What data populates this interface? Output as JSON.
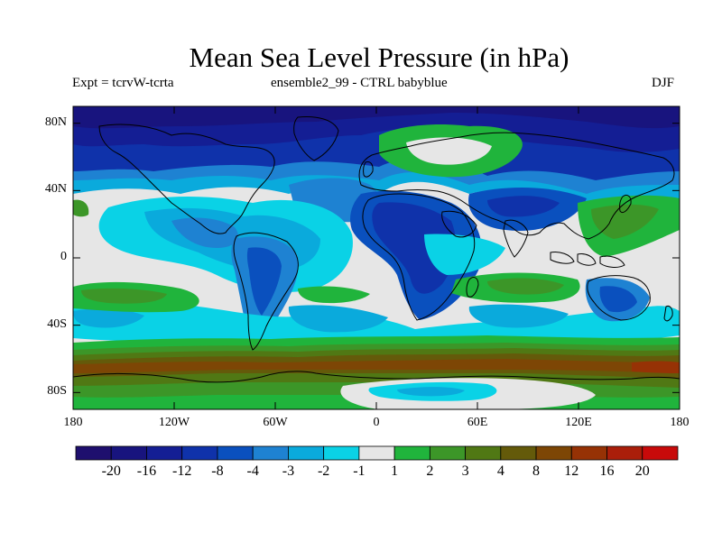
{
  "title": "Mean Sea Level Pressure (in hPa)",
  "subtitle_left": "Expt = tcrvW-tcrta",
  "subtitle_center": "ensemble2_99 - CTRL babyblue",
  "subtitle_right": "DJF",
  "map": {
    "projection": "cylindrical-equidistant",
    "lon_range": [
      -180,
      180
    ],
    "lat_range": [
      -90,
      90
    ],
    "y_ticks": [
      {
        "label": "80N",
        "lat": 80
      },
      {
        "label": "40N",
        "lat": 40
      },
      {
        "label": "0",
        "lat": 0
      },
      {
        "label": "40S",
        "lat": -40
      },
      {
        "label": "80S",
        "lat": -80
      }
    ],
    "x_ticks": [
      {
        "label": "180",
        "lon": -180
      },
      {
        "label": "120W",
        "lon": -120
      },
      {
        "label": "60W",
        "lon": -60
      },
      {
        "label": "0",
        "lon": 0
      },
      {
        "label": "60E",
        "lon": 60
      },
      {
        "label": "120E",
        "lon": 120
      },
      {
        "label": "180",
        "lon": 180
      }
    ]
  },
  "colorbar": {
    "colors": [
      "#1e0f6e",
      "#18147e",
      "#141e94",
      "#0f32aa",
      "#0a50be",
      "#1e82d2",
      "#0aaadc",
      "#0ad2e6",
      "#e6e6e6",
      "#20b43c",
      "#3c9628",
      "#507814",
      "#645a0a",
      "#7d4605",
      "#963205",
      "#aa1e0a",
      "#c80a0a"
    ],
    "labels": [
      "-20",
      "-16",
      "-12",
      "-8",
      "-4",
      "-3",
      "-2",
      "-1",
      "1",
      "2",
      "3",
      "4",
      "8",
      "12",
      "16",
      "20"
    ]
  }
}
